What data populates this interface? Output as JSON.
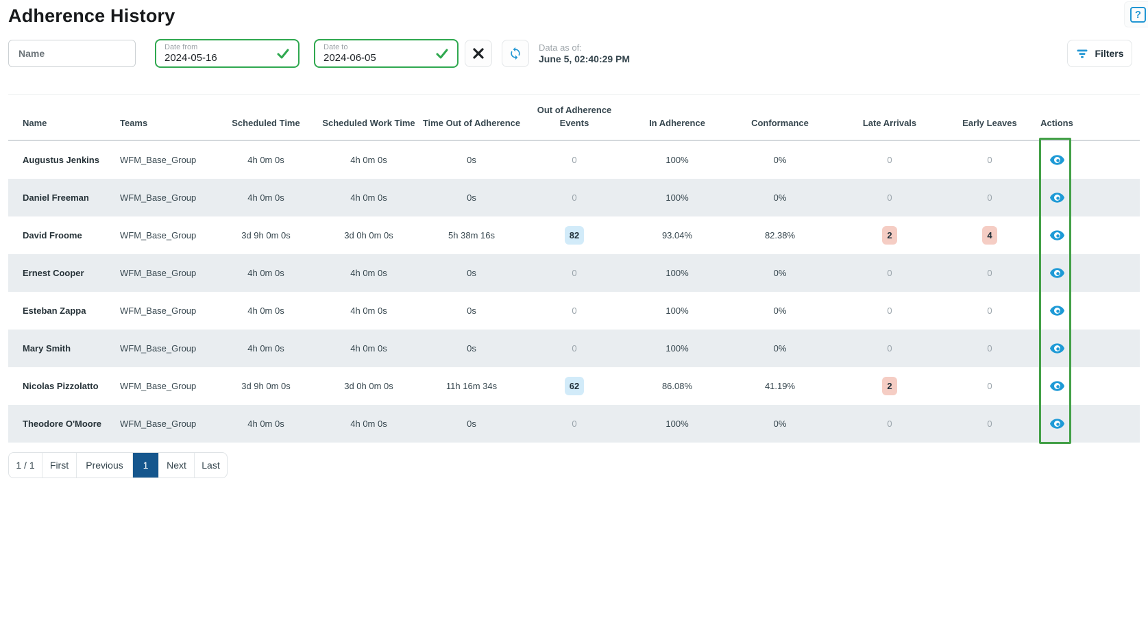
{
  "page": {
    "title": "Adherence History"
  },
  "icons": {
    "help": "?",
    "close": "close-x",
    "refresh": "sync-arrows",
    "filter": "filter-bars",
    "check": "checkmark",
    "view": "eye"
  },
  "filters": {
    "name_placeholder": "Name",
    "date_from": {
      "label": "Date from",
      "value": "2024-05-16"
    },
    "date_to": {
      "label": "Date to",
      "value": "2024-06-05"
    },
    "data_as_of_label": "Data as of:",
    "data_as_of_value": "June 5, 02:40:29 PM",
    "filters_button": "Filters"
  },
  "table": {
    "columns": [
      "Name",
      "Teams",
      "Scheduled Time",
      "Scheduled Work Time",
      "Time Out of Adherence",
      "Out of Adherence Events",
      "In Adherence",
      "Conformance",
      "Late Arrivals",
      "Early Leaves",
      "Actions"
    ],
    "rows": [
      {
        "name": "Augustus Jenkins",
        "teams": "WFM_Base_Group",
        "scheduled_time": "4h 0m 0s",
        "scheduled_work_time": "4h 0m 0s",
        "time_out_of_adherence": "0s",
        "out_of_adherence_events": "0",
        "events_highlighted": false,
        "in_adherence": "100%",
        "conformance": "0%",
        "late_arrivals": "0",
        "late_highlighted": false,
        "early_leaves": "0",
        "early_highlighted": false
      },
      {
        "name": "Daniel Freeman",
        "teams": "WFM_Base_Group",
        "scheduled_time": "4h 0m 0s",
        "scheduled_work_time": "4h 0m 0s",
        "time_out_of_adherence": "0s",
        "out_of_adherence_events": "0",
        "events_highlighted": false,
        "in_adherence": "100%",
        "conformance": "0%",
        "late_arrivals": "0",
        "late_highlighted": false,
        "early_leaves": "0",
        "early_highlighted": false
      },
      {
        "name": "David Froome",
        "teams": "WFM_Base_Group",
        "scheduled_time": "3d 9h 0m 0s",
        "scheduled_work_time": "3d 0h 0m 0s",
        "time_out_of_adherence": "5h 38m 16s",
        "out_of_adherence_events": "82",
        "events_highlighted": true,
        "in_adherence": "93.04%",
        "conformance": "82.38%",
        "late_arrivals": "2",
        "late_highlighted": true,
        "early_leaves": "4",
        "early_highlighted": true
      },
      {
        "name": "Ernest Cooper",
        "teams": "WFM_Base_Group",
        "scheduled_time": "4h 0m 0s",
        "scheduled_work_time": "4h 0m 0s",
        "time_out_of_adherence": "0s",
        "out_of_adherence_events": "0",
        "events_highlighted": false,
        "in_adherence": "100%",
        "conformance": "0%",
        "late_arrivals": "0",
        "late_highlighted": false,
        "early_leaves": "0",
        "early_highlighted": false
      },
      {
        "name": "Esteban Zappa",
        "teams": "WFM_Base_Group",
        "scheduled_time": "4h 0m 0s",
        "scheduled_work_time": "4h 0m 0s",
        "time_out_of_adherence": "0s",
        "out_of_adherence_events": "0",
        "events_highlighted": false,
        "in_adherence": "100%",
        "conformance": "0%",
        "late_arrivals": "0",
        "late_highlighted": false,
        "early_leaves": "0",
        "early_highlighted": false
      },
      {
        "name": "Mary Smith",
        "teams": "WFM_Base_Group",
        "scheduled_time": "4h 0m 0s",
        "scheduled_work_time": "4h 0m 0s",
        "time_out_of_adherence": "0s",
        "out_of_adherence_events": "0",
        "events_highlighted": false,
        "in_adherence": "100%",
        "conformance": "0%",
        "late_arrivals": "0",
        "late_highlighted": false,
        "early_leaves": "0",
        "early_highlighted": false
      },
      {
        "name": "Nicolas Pizzolatto",
        "teams": "WFM_Base_Group",
        "scheduled_time": "3d 9h 0m 0s",
        "scheduled_work_time": "3d 0h 0m 0s",
        "time_out_of_adherence": "11h 16m 34s",
        "out_of_adherence_events": "62",
        "events_highlighted": true,
        "in_adherence": "86.08%",
        "conformance": "41.19%",
        "late_arrivals": "2",
        "late_highlighted": true,
        "early_leaves": "0",
        "early_highlighted": false
      },
      {
        "name": "Theodore O'Moore",
        "teams": "WFM_Base_Group",
        "scheduled_time": "4h 0m 0s",
        "scheduled_work_time": "4h 0m 0s",
        "time_out_of_adherence": "0s",
        "out_of_adherence_events": "0",
        "events_highlighted": false,
        "in_adherence": "100%",
        "conformance": "0%",
        "late_arrivals": "0",
        "late_highlighted": false,
        "early_leaves": "0",
        "early_highlighted": false
      }
    ]
  },
  "pagination": {
    "indicator": "1 / 1",
    "first": "First",
    "previous": "Previous",
    "current_page": "1",
    "next": "Next",
    "last": "Last"
  },
  "colors": {
    "accent_blue": "#2196d3",
    "eye_blue": "#1e9ad6",
    "success_green": "#2fa84f",
    "highlight_green": "#43a047",
    "badge_blue_bg": "#d2ebf9",
    "badge_pink_bg": "#f5cdc4",
    "active_page_bg": "#15568d",
    "row_stripe": "#e9edf0"
  }
}
